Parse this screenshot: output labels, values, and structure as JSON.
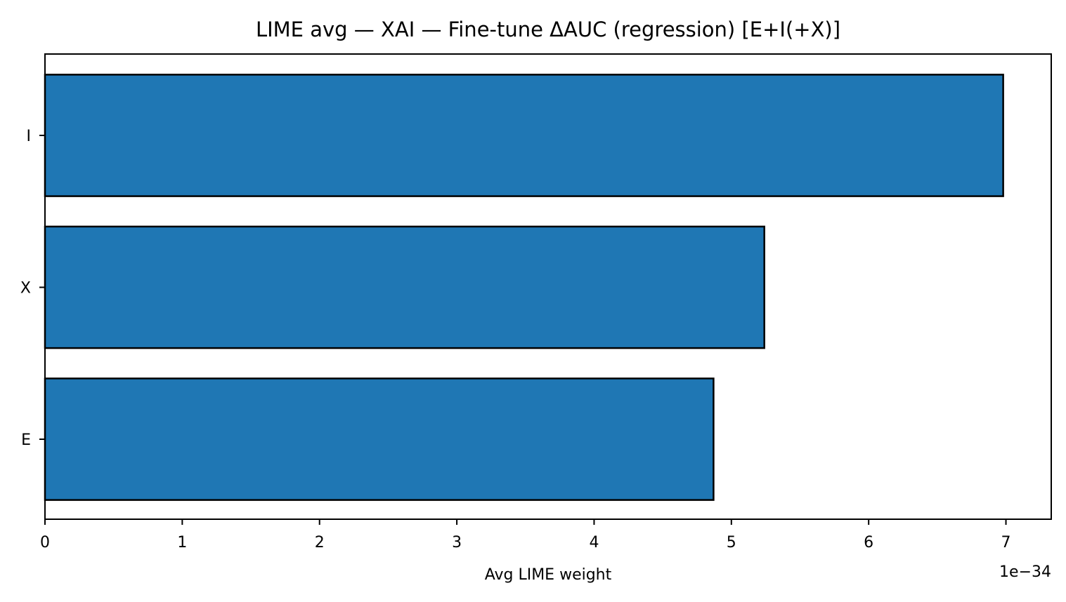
{
  "chart_data": {
    "type": "bar",
    "orientation": "horizontal",
    "title": "LIME avg — XAI — Fine-tune ΔAUC (regression) [E+I(+X)]",
    "xlabel": "Avg LIME weight",
    "ylabel": "",
    "x_offset_label": "1e−34",
    "x_scale_exponent": -34,
    "categories": [
      "I",
      "X",
      "E"
    ],
    "values": [
      6.98,
      5.24,
      4.87
    ],
    "x_ticks": [
      "0",
      "1",
      "2",
      "3",
      "4",
      "5",
      "6",
      "7"
    ],
    "xlim": [
      0,
      7.33
    ],
    "bar_color": "#1f77b4",
    "edge_color": "#000000",
    "grid": false,
    "legend": "none"
  }
}
